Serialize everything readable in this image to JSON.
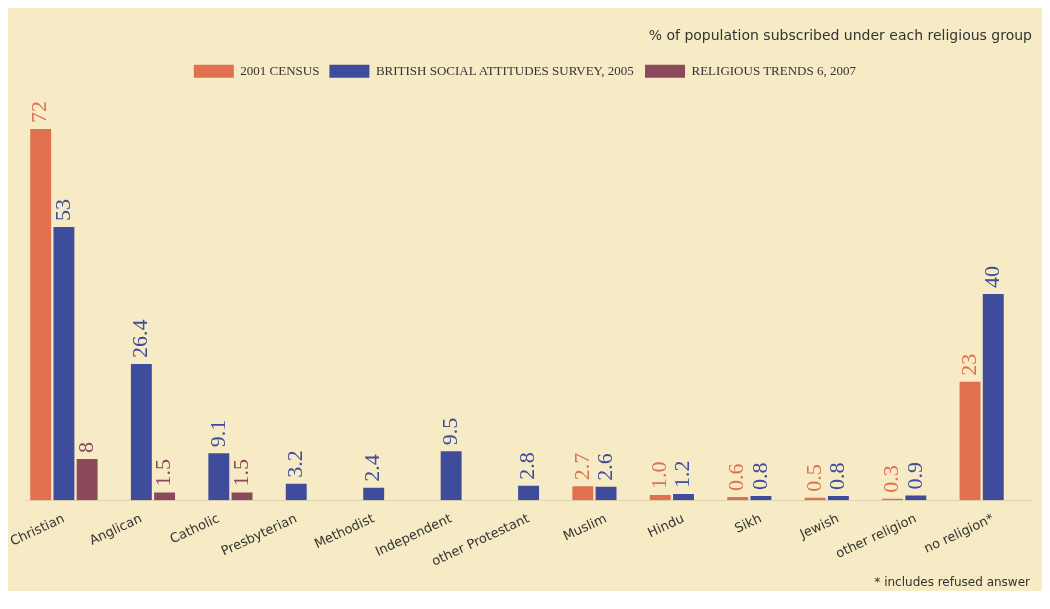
{
  "chart_data": {
    "type": "bar",
    "title": "% of population subscribed under each religious group",
    "categories": [
      "Christian",
      "Anglican",
      "Catholic",
      "Presbyterian",
      "Methodist",
      "Independent",
      "other Protestant",
      "Muslim",
      "Hindu",
      "Sikh",
      "Jewish",
      "other religion",
      "no religion*"
    ],
    "series": [
      {
        "name": "2001 CENSUS",
        "color": "#e0704f",
        "values": [
          72,
          null,
          null,
          null,
          null,
          null,
          null,
          2.7,
          1.0,
          0.6,
          0.5,
          0.3,
          23
        ],
        "value_labels": [
          "72",
          null,
          null,
          null,
          null,
          null,
          null,
          "2.7",
          "1.0",
          "0.6",
          "0.5",
          "0.3",
          "23"
        ]
      },
      {
        "name": "BRITISH SOCIAL ATTITUDES SURVEY, 2005",
        "color": "#3f4c9c",
        "values": [
          53,
          26.4,
          9.1,
          3.2,
          2.4,
          9.5,
          2.8,
          2.6,
          1.2,
          0.8,
          0.8,
          0.9,
          40
        ],
        "value_labels": [
          "53",
          "26.4",
          "9.1",
          "3.2",
          "2.4",
          "9.5",
          "2.8",
          "2.6",
          "1.2",
          "0.8",
          "0.8",
          "0.9",
          "40"
        ]
      },
      {
        "name": "RELIGIOUS TRENDS 6, 2007",
        "color": "#8a4a5c",
        "values": [
          8,
          1.5,
          1.5,
          null,
          null,
          null,
          null,
          null,
          null,
          null,
          null,
          null,
          null
        ],
        "value_labels": [
          "8",
          "1.5",
          "1.5",
          null,
          null,
          null,
          null,
          null,
          null,
          null,
          null,
          null,
          null
        ]
      }
    ],
    "tick_labels": "x",
    "grid": false,
    "legend": "top",
    "annotations": [
      "* includes refused answer"
    ]
  }
}
